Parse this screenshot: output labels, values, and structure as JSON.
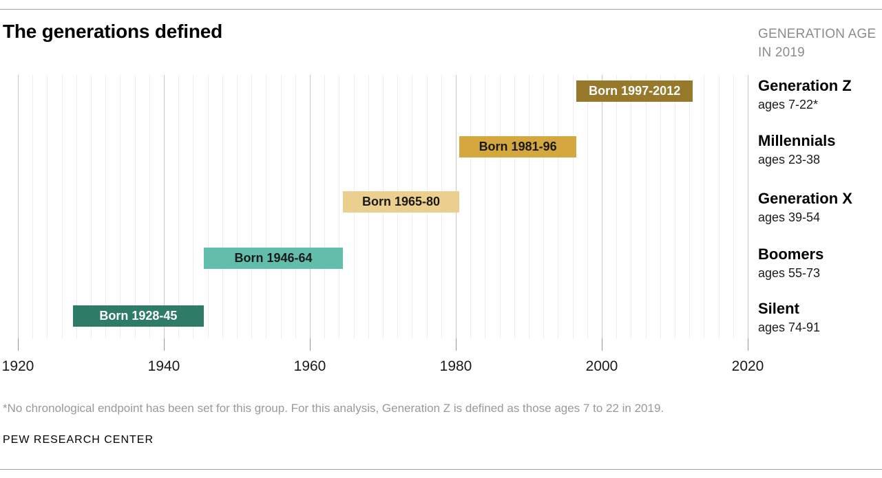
{
  "header": {
    "title": "The generations defined",
    "age_header_line1": "GENERATION AGE",
    "age_header_line2": "IN 2019"
  },
  "chart_data": {
    "type": "bar",
    "subtype": "horizontal-timeline",
    "title": "The generations defined",
    "xlabel": "",
    "ylabel": "",
    "xlim": [
      1920,
      2020
    ],
    "x_ticks": [
      "1920",
      "1940",
      "1960",
      "1980",
      "2000",
      "2020"
    ],
    "minor_grid_step_years": 2,
    "major_grid_step_years": 20,
    "grid": true,
    "series": [
      {
        "name": "Generation Z",
        "age_label": "ages 7-22*",
        "bar_label": "Born 1997-2012",
        "birth_start": 1997,
        "birth_end": 2012,
        "color": "#97792c",
        "bar_label_color": "#ffffff"
      },
      {
        "name": "Millennials",
        "age_label": "ages 23-38",
        "bar_label": "Born 1981-96",
        "birth_start": 1981,
        "birth_end": 1996,
        "color": "#d4a83e",
        "bar_label_color": "#1a1a1a"
      },
      {
        "name": "Generation X",
        "age_label": "ages 39-54",
        "bar_label": "Born 1965-80",
        "birth_start": 1965,
        "birth_end": 1980,
        "color": "#ebcf8f",
        "bar_label_color": "#1a1a1a"
      },
      {
        "name": "Boomers",
        "age_label": "ages 55-73",
        "bar_label": "Born 1946-64",
        "birth_start": 1946,
        "birth_end": 1964,
        "color": "#62bdab",
        "bar_label_color": "#1a1a1a"
      },
      {
        "name": "Silent",
        "age_label": "ages 74-91",
        "bar_label": "Born 1928-45",
        "birth_start": 1928,
        "birth_end": 1945,
        "color": "#2e7b68",
        "bar_label_color": "#ffffff"
      }
    ],
    "colors": {
      "minor_grid": "#ededed",
      "major_grid": "#c8c8c8",
      "tick": "#9b9b9b",
      "axis_text": "#1a1a1a"
    }
  },
  "footnote": "*No chronological endpoint has been set for this group. For this analysis, Generation Z is defined as those ages 7 to 22 in 2019.",
  "footer": "PEW RESEARCH CENTER"
}
